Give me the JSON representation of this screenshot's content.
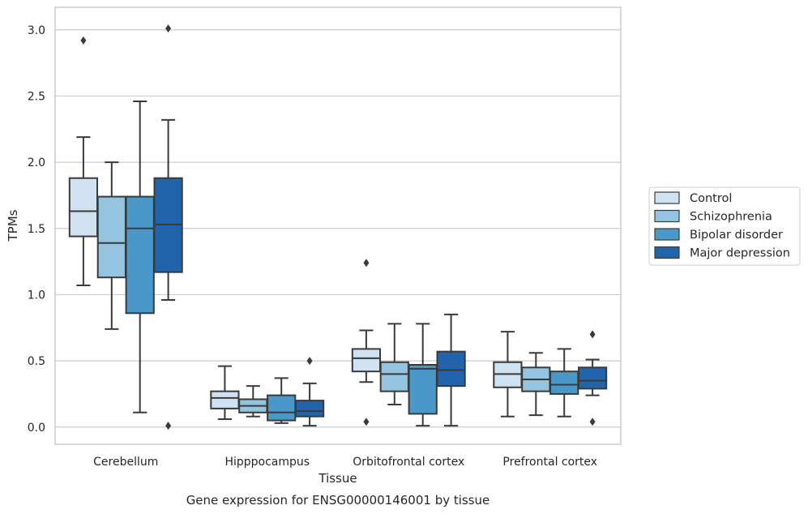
{
  "chart_data": {
    "type": "boxplot",
    "caption": "Gene expression for ENSG00000146001 by tissue",
    "xlabel": "Tissue",
    "ylabel": "TPMs",
    "ylim": [
      -0.13,
      3.17
    ],
    "yticks": [
      0.0,
      0.5,
      1.0,
      1.5,
      2.0,
      2.5,
      3.0
    ],
    "ytick_labels": [
      "0.0",
      "0.5",
      "1.0",
      "1.5",
      "2.0",
      "2.5",
      "3.0"
    ],
    "grid": "horizontal",
    "legend_position": "right",
    "categories": [
      "Cerebellum",
      "Hipppocampus",
      "Orbitofrontal cortex",
      "Prefrontal cortex"
    ],
    "series": [
      {
        "name": "Control",
        "color": "#d0e1f2",
        "boxes": [
          {
            "whisker_low": 1.07,
            "q1": 1.44,
            "median": 1.63,
            "q3": 1.88,
            "whisker_high": 2.19,
            "outliers": [
              2.92
            ]
          },
          {
            "whisker_low": 0.06,
            "q1": 0.14,
            "median": 0.22,
            "q3": 0.27,
            "whisker_high": 0.46,
            "outliers": []
          },
          {
            "whisker_low": 0.34,
            "q1": 0.42,
            "median": 0.52,
            "q3": 0.59,
            "whisker_high": 0.73,
            "outliers": [
              1.24,
              0.04
            ]
          },
          {
            "whisker_low": 0.08,
            "q1": 0.3,
            "median": 0.4,
            "q3": 0.49,
            "whisker_high": 0.72,
            "outliers": []
          }
        ]
      },
      {
        "name": "Schizophrenia",
        "color": "#94c4df",
        "boxes": [
          {
            "whisker_low": 0.74,
            "q1": 1.13,
            "median": 1.39,
            "q3": 1.74,
            "whisker_high": 2.0,
            "outliers": []
          },
          {
            "whisker_low": 0.08,
            "q1": 0.11,
            "median": 0.16,
            "q3": 0.21,
            "whisker_high": 0.31,
            "outliers": []
          },
          {
            "whisker_low": 0.17,
            "q1": 0.27,
            "median": 0.4,
            "q3": 0.49,
            "whisker_high": 0.78,
            "outliers": []
          },
          {
            "whisker_low": 0.09,
            "q1": 0.27,
            "median": 0.36,
            "q3": 0.45,
            "whisker_high": 0.56,
            "outliers": []
          }
        ]
      },
      {
        "name": "Bipolar disorder",
        "color": "#4a98c9",
        "boxes": [
          {
            "whisker_low": 0.11,
            "q1": 0.86,
            "median": 1.5,
            "q3": 1.74,
            "whisker_high": 2.46,
            "outliers": []
          },
          {
            "whisker_low": 0.03,
            "q1": 0.05,
            "median": 0.11,
            "q3": 0.24,
            "whisker_high": 0.37,
            "outliers": []
          },
          {
            "whisker_low": 0.01,
            "q1": 0.1,
            "median": 0.44,
            "q3": 0.47,
            "whisker_high": 0.78,
            "outliers": []
          },
          {
            "whisker_low": 0.08,
            "q1": 0.25,
            "median": 0.32,
            "q3": 0.42,
            "whisker_high": 0.59,
            "outliers": []
          }
        ]
      },
      {
        "name": "Major depression",
        "color": "#2164ab",
        "boxes": [
          {
            "whisker_low": 0.96,
            "q1": 1.17,
            "median": 1.53,
            "q3": 1.88,
            "whisker_high": 2.32,
            "outliers": [
              3.01,
              0.01
            ]
          },
          {
            "whisker_low": 0.01,
            "q1": 0.08,
            "median": 0.12,
            "q3": 0.2,
            "whisker_high": 0.33,
            "outliers": [
              0.5
            ]
          },
          {
            "whisker_low": 0.01,
            "q1": 0.31,
            "median": 0.43,
            "q3": 0.57,
            "whisker_high": 0.85,
            "outliers": []
          },
          {
            "whisker_low": 0.24,
            "q1": 0.29,
            "median": 0.35,
            "q3": 0.45,
            "whisker_high": 0.51,
            "outliers": [
              0.7,
              0.04
            ]
          }
        ]
      }
    ]
  }
}
